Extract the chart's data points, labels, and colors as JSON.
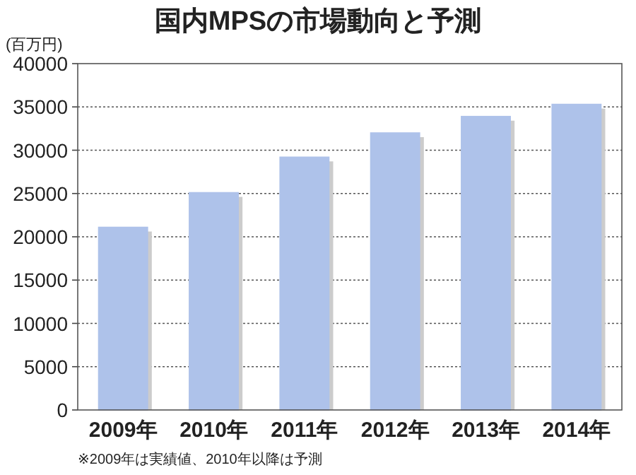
{
  "chart_data": {
    "type": "bar",
    "title": "国内MPSの市場動向と予測",
    "ylabel": "(百万円)",
    "categories": [
      "2009年",
      "2010年",
      "2011年",
      "2012年",
      "2013年",
      "2014年"
    ],
    "values": [
      21100,
      25100,
      29200,
      32000,
      33900,
      35300
    ],
    "color": "#aec2ea",
    "ylim": [
      0,
      40000
    ],
    "yticks": [
      0,
      5000,
      10000,
      15000,
      20000,
      25000,
      30000,
      35000,
      40000
    ],
    "grid": "y",
    "annotations": [
      "※2009年は実績値、2010年以降は予測"
    ]
  }
}
